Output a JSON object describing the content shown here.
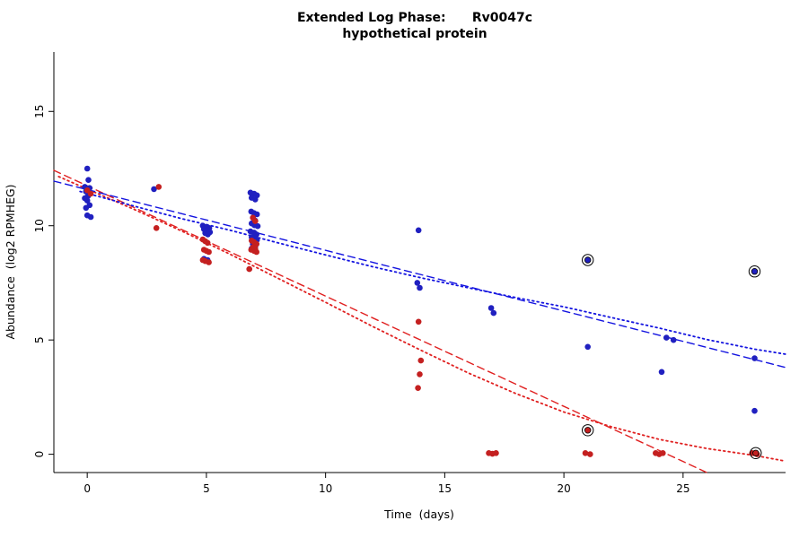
{
  "title": {
    "line1": "Extended Log Phase:      Rv0047c",
    "line2": "hypothetical protein"
  },
  "chart_data": {
    "type": "scatter",
    "title": "Extended Log Phase: Rv0047c — hypothetical protein",
    "xlabel": "Time  (days)",
    "ylabel": "Abundance  (log2 RPMHEG)",
    "xlim": [
      -1.4,
      29.3
    ],
    "ylim": [
      -0.8,
      17.6
    ],
    "xticks": [
      0,
      5,
      10,
      15,
      20,
      25
    ],
    "yticks": [
      0,
      5,
      10,
      15
    ],
    "grid": false,
    "legend": "none",
    "colors": {
      "blue_point": "#2020c0",
      "red_point": "#c42020",
      "blue_line": "#1414e0",
      "red_line": "#e02020",
      "axis": "#000000"
    },
    "series": [
      {
        "name": "blue-series",
        "color": "blue_point",
        "points": [
          [
            0,
            12.5
          ],
          [
            0.05,
            12.0
          ],
          [
            -0.1,
            11.7
          ],
          [
            0.1,
            11.65
          ],
          [
            -0.05,
            11.5
          ],
          [
            0.12,
            11.45
          ],
          [
            0.03,
            11.3
          ],
          [
            -0.1,
            11.2
          ],
          [
            0,
            11.1
          ],
          [
            0.1,
            10.9
          ],
          [
            -0.05,
            10.78
          ],
          [
            0,
            10.45
          ],
          [
            0.15,
            10.38
          ],
          [
            2.8,
            11.6
          ],
          [
            4.85,
            10.0
          ],
          [
            5.0,
            9.95
          ],
          [
            5.12,
            9.9
          ],
          [
            4.9,
            9.85
          ],
          [
            5.02,
            9.8
          ],
          [
            5.15,
            9.72
          ],
          [
            4.95,
            9.68
          ],
          [
            5.06,
            9.62
          ],
          [
            4.9,
            8.55
          ],
          [
            5.05,
            8.5
          ],
          [
            6.85,
            11.45
          ],
          [
            7.0,
            11.4
          ],
          [
            7.12,
            11.33
          ],
          [
            6.9,
            11.22
          ],
          [
            7.05,
            11.15
          ],
          [
            6.88,
            10.62
          ],
          [
            7.0,
            10.55
          ],
          [
            7.12,
            10.5
          ],
          [
            6.95,
            10.35
          ],
          [
            7.05,
            10.22
          ],
          [
            6.9,
            10.1
          ],
          [
            7.02,
            10.02
          ],
          [
            7.15,
            9.98
          ],
          [
            6.85,
            9.75
          ],
          [
            7.0,
            9.7
          ],
          [
            7.1,
            9.62
          ],
          [
            6.9,
            9.5
          ],
          [
            7.0,
            9.45
          ],
          [
            7.12,
            9.38
          ],
          [
            6.95,
            9.2
          ],
          [
            7.05,
            9.1
          ],
          [
            6.9,
            9.0
          ],
          [
            13.9,
            9.8
          ],
          [
            13.85,
            7.5
          ],
          [
            13.95,
            7.28
          ],
          [
            16.95,
            6.4
          ],
          [
            17.05,
            6.18
          ],
          [
            21,
            4.7
          ],
          [
            24.3,
            5.1
          ],
          [
            24.6,
            5.0
          ],
          [
            24.1,
            3.6
          ],
          [
            28,
            4.2
          ],
          [
            28,
            1.9
          ]
        ]
      },
      {
        "name": "red-series",
        "color": "red_point",
        "points": [
          [
            0,
            11.55
          ],
          [
            0.15,
            11.4
          ],
          [
            3.0,
            11.7
          ],
          [
            2.9,
            9.9
          ],
          [
            4.85,
            9.4
          ],
          [
            4.95,
            9.32
          ],
          [
            5.05,
            9.25
          ],
          [
            4.9,
            8.95
          ],
          [
            5.0,
            8.9
          ],
          [
            5.1,
            8.85
          ],
          [
            4.85,
            8.5
          ],
          [
            4.95,
            8.45
          ],
          [
            5.1,
            8.4
          ],
          [
            6.95,
            10.35
          ],
          [
            7.05,
            10.2
          ],
          [
            6.9,
            9.35
          ],
          [
            7.0,
            9.28
          ],
          [
            7.1,
            9.2
          ],
          [
            6.95,
            9.05
          ],
          [
            7.05,
            9.0
          ],
          [
            6.88,
            8.95
          ],
          [
            7.0,
            8.9
          ],
          [
            7.1,
            8.85
          ],
          [
            6.8,
            8.1
          ],
          [
            13.9,
            5.8
          ],
          [
            14.0,
            4.1
          ],
          [
            13.95,
            3.5
          ],
          [
            13.88,
            2.9
          ],
          [
            16.85,
            0.05
          ],
          [
            17.0,
            0.02
          ],
          [
            17.15,
            0.05
          ],
          [
            20.9,
            0.05
          ],
          [
            21.1,
            0.0
          ],
          [
            23.85,
            0.05
          ],
          [
            24.0,
            0.0
          ],
          [
            24.15,
            0.05
          ],
          [
            27.9,
            0.05
          ],
          [
            28.1,
            0.0
          ]
        ]
      }
    ],
    "outlier_points": [
      {
        "x": 21,
        "y": 8.5,
        "color": "blue_point"
      },
      {
        "x": 28,
        "y": 8.0,
        "color": "blue_point"
      },
      {
        "x": 21,
        "y": 1.05,
        "color": "red_point"
      },
      {
        "x": 28.05,
        "y": 0.05,
        "color": "red_point"
      }
    ],
    "lines": [
      {
        "name": "red-dashed-fit",
        "color": "red_line",
        "style": "dashed",
        "dash": "8,5",
        "width": 1.4,
        "points": [
          [
            -1.4,
            12.42
          ],
          [
            26.0,
            -0.8
          ]
        ]
      },
      {
        "name": "red-dotted-fit",
        "color": "red_line",
        "style": "dotted",
        "dash": "1.8,3.6",
        "width": 1.8,
        "points": [
          [
            -1.2,
            12.15
          ],
          [
            0,
            11.6
          ],
          [
            2,
            10.7
          ],
          [
            4,
            9.75
          ],
          [
            6,
            8.75
          ],
          [
            8,
            7.7
          ],
          [
            10,
            6.65
          ],
          [
            12,
            5.58
          ],
          [
            14,
            4.55
          ],
          [
            16,
            3.55
          ],
          [
            18,
            2.65
          ],
          [
            20,
            1.85
          ],
          [
            22,
            1.2
          ],
          [
            24,
            0.65
          ],
          [
            26,
            0.25
          ],
          [
            28,
            -0.05
          ],
          [
            29.3,
            -0.3
          ]
        ]
      },
      {
        "name": "blue-dashed-fit",
        "color": "blue_line",
        "style": "dashed",
        "dash": "8,5",
        "width": 1.4,
        "points": [
          [
            -1.4,
            11.95
          ],
          [
            29.3,
            3.8
          ]
        ]
      },
      {
        "name": "blue-dotted-fit",
        "color": "blue_line",
        "style": "dotted",
        "dash": "1.8,3.6",
        "width": 1.8,
        "points": [
          [
            -0.3,
            11.5
          ],
          [
            2,
            10.85
          ],
          [
            4,
            10.3
          ],
          [
            6,
            9.8
          ],
          [
            8,
            9.25
          ],
          [
            10,
            8.72
          ],
          [
            12,
            8.2
          ],
          [
            14,
            7.72
          ],
          [
            16,
            7.28
          ],
          [
            18,
            6.85
          ],
          [
            20,
            6.45
          ],
          [
            22,
            5.98
          ],
          [
            24,
            5.52
          ],
          [
            26,
            5.02
          ],
          [
            28,
            4.6
          ],
          [
            29.3,
            4.38
          ]
        ]
      }
    ]
  }
}
